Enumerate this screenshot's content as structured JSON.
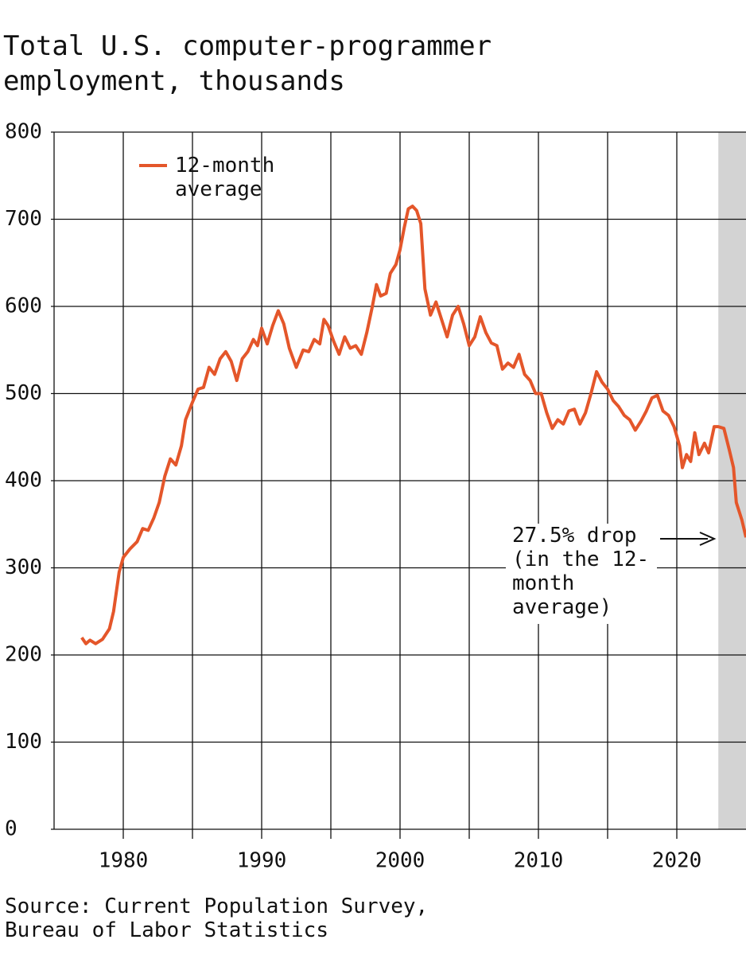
{
  "chart_data": {
    "type": "line",
    "title": "Total U.S. computer-programmer employment, thousands",
    "source": "Source: Current Population Survey, Bureau of Labor Statistics",
    "annotation": "27.5% drop (in the 12-month average)",
    "xlim": [
      1975,
      2025
    ],
    "ylim": [
      0,
      800
    ],
    "xticks": [
      1980,
      1990,
      2000,
      2010,
      2020
    ],
    "x_minor_ticks": [
      1985,
      1995,
      2005,
      2015
    ],
    "yticks": [
      0,
      100,
      200,
      300,
      400,
      500,
      600,
      700,
      800
    ],
    "grid": true,
    "shade": [
      2023,
      2025
    ],
    "shade_color": "#d3d3d3",
    "legend": "upper left",
    "x": [
      1977.0,
      1977.3,
      1977.6,
      1978.0,
      1978.5,
      1979.0,
      1979.3,
      1979.7,
      1980.0,
      1980.5,
      1981.0,
      1981.4,
      1981.8,
      1982.2,
      1982.6,
      1983.0,
      1983.4,
      1983.8,
      1984.2,
      1984.5,
      1985.0,
      1985.4,
      1985.8,
      1986.2,
      1986.6,
      1987.0,
      1987.4,
      1987.8,
      1988.2,
      1988.6,
      1989.0,
      1989.4,
      1989.7,
      1990.0,
      1990.4,
      1990.8,
      1991.2,
      1991.6,
      1992.0,
      1992.5,
      1993.0,
      1993.4,
      1993.8,
      1994.2,
      1994.5,
      1994.8,
      1995.2,
      1995.6,
      1996.0,
      1996.4,
      1996.8,
      1997.2,
      1997.6,
      1998.0,
      1998.3,
      1998.6,
      1999.0,
      1999.3,
      1999.7,
      2000.0,
      2000.3,
      2000.6,
      2000.9,
      2001.2,
      2001.5,
      2001.8,
      2002.2,
      2002.6,
      2003.0,
      2003.4,
      2003.8,
      2004.2,
      2004.6,
      2005.0,
      2005.4,
      2005.8,
      2006.2,
      2006.6,
      2007.0,
      2007.4,
      2007.8,
      2008.2,
      2008.6,
      2009.0,
      2009.4,
      2009.8,
      2010.2,
      2010.6,
      2011.0,
      2011.4,
      2011.8,
      2012.2,
      2012.6,
      2013.0,
      2013.4,
      2013.8,
      2014.2,
      2014.6,
      2015.0,
      2015.4,
      2015.8,
      2016.2,
      2016.6,
      2017.0,
      2017.4,
      2017.8,
      2018.2,
      2018.6,
      2019.0,
      2019.4,
      2019.8,
      2020.2,
      2020.4,
      2020.7,
      2021.0,
      2021.3,
      2021.6,
      2022.0,
      2022.3,
      2022.7,
      2023.0,
      2023.4,
      2023.8,
      2024.1,
      2024.3,
      2024.7,
      2025.0
    ],
    "series": [
      {
        "name": "12-month average",
        "color": "#e4562a",
        "values": [
          220,
          213,
          217,
          213,
          218,
          230,
          250,
          295,
          312,
          322,
          330,
          345,
          343,
          357,
          375,
          405,
          425,
          418,
          440,
          470,
          490,
          505,
          507,
          530,
          522,
          540,
          548,
          537,
          515,
          540,
          548,
          562,
          555,
          575,
          557,
          578,
          595,
          580,
          552,
          530,
          550,
          548,
          562,
          557,
          585,
          578,
          560,
          545,
          565,
          552,
          555,
          545,
          570,
          600,
          625,
          612,
          615,
          638,
          648,
          665,
          690,
          712,
          715,
          710,
          695,
          620,
          590,
          605,
          585,
          565,
          590,
          600,
          580,
          555,
          565,
          588,
          570,
          558,
          555,
          528,
          535,
          530,
          545,
          522,
          515,
          500,
          500,
          478,
          460,
          470,
          465,
          480,
          482,
          465,
          478,
          500,
          525,
          513,
          505,
          492,
          485,
          475,
          470,
          458,
          468,
          480,
          495,
          498,
          480,
          475,
          462,
          440,
          415,
          430,
          422,
          455,
          430,
          443,
          432,
          462,
          462,
          460,
          435,
          415,
          375,
          355,
          335
        ]
      }
    ]
  }
}
